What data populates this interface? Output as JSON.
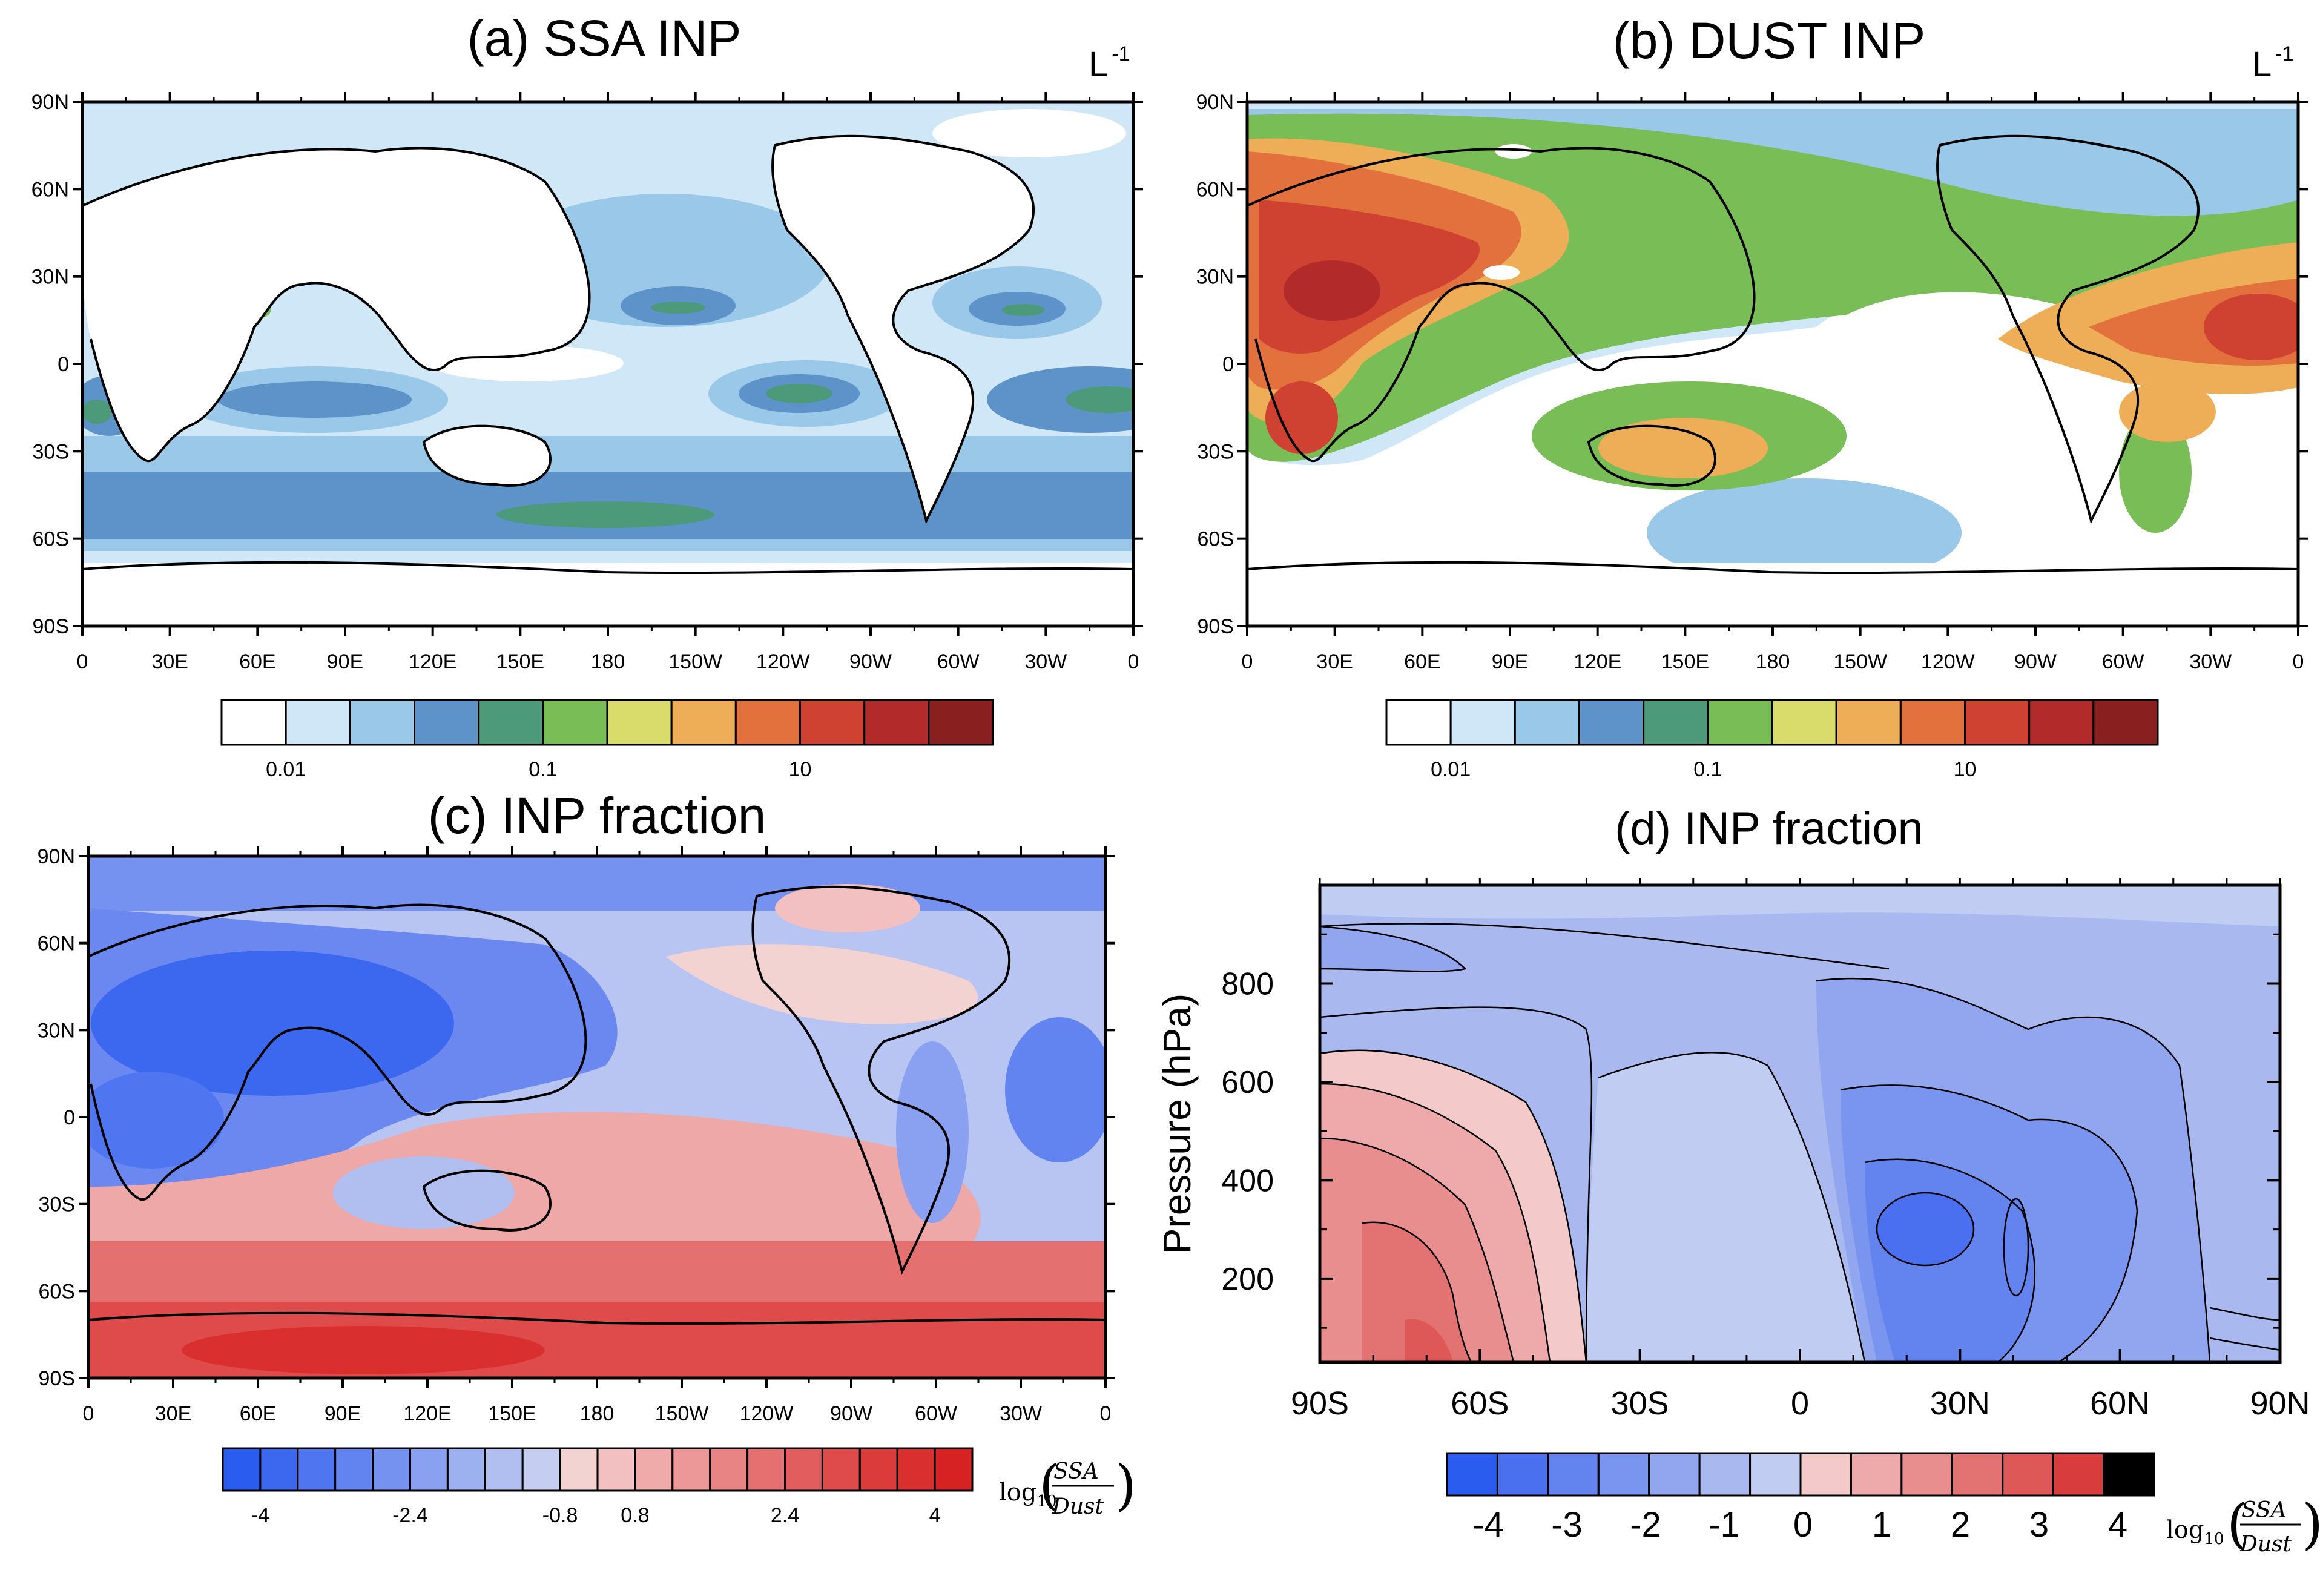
{
  "chart_data": [
    {
      "id": "a",
      "type": "heatmap",
      "title": "(a) SSA INP",
      "unit_label": "L",
      "unit_exp": "-1",
      "map_region": "global",
      "x_ticks": [
        "0",
        "30E",
        "60E",
        "90E",
        "120E",
        "150E",
        "180",
        "150W",
        "120W",
        "90W",
        "60W",
        "30W",
        "0"
      ],
      "y_ticks": [
        "90N",
        "60N",
        "30N",
        "0",
        "30S",
        "60S",
        "90S"
      ],
      "colorbar_colors": [
        "#ffffff",
        "#cfe7f7",
        "#9ac8e8",
        "#5e93ca",
        "#4c9a7a",
        "#78bd55",
        "#d9dc6a",
        "#eeae57",
        "#e2713d",
        "#cf4131",
        "#b32a2a",
        "#8a1f1f"
      ],
      "colorbar_labels": [
        "0.01",
        "0.1",
        "10"
      ],
      "colorbar_label_positions": [
        1,
        5,
        9
      ]
    },
    {
      "id": "b",
      "type": "heatmap",
      "title": "(b) DUST INP",
      "unit_label": "L",
      "unit_exp": "-1",
      "map_region": "global",
      "x_ticks": [
        "0",
        "30E",
        "60E",
        "90E",
        "120E",
        "150E",
        "180",
        "150W",
        "120W",
        "90W",
        "60W",
        "30W",
        "0"
      ],
      "y_ticks": [
        "90N",
        "60N",
        "30N",
        "0",
        "30S",
        "60S",
        "90S"
      ],
      "colorbar_colors": [
        "#ffffff",
        "#cfe7f7",
        "#9ac8e8",
        "#5e93ca",
        "#4c9a7a",
        "#78bd55",
        "#d9dc6a",
        "#eeae57",
        "#e2713d",
        "#cf4131",
        "#b32a2a",
        "#8a1f1f"
      ],
      "colorbar_labels": [
        "0.01",
        "0.1",
        "10"
      ],
      "colorbar_label_positions": [
        1,
        5,
        9
      ]
    },
    {
      "id": "c",
      "type": "heatmap",
      "title": "(c) INP fraction",
      "map_region": "global",
      "x_ticks": [
        "0",
        "30E",
        "60E",
        "90E",
        "120E",
        "150E",
        "180",
        "150W",
        "120W",
        "90W",
        "60W",
        "30W",
        "0"
      ],
      "y_ticks": [
        "90N",
        "60N",
        "30N",
        "0",
        "30S",
        "60S",
        "90S"
      ],
      "colorbar_colors": [
        "#2b5cf0",
        "#3c68f0",
        "#4f76f0",
        "#6284f0",
        "#7592f0",
        "#89a1f0",
        "#9db0f0",
        "#b1bff0",
        "#c5cef0",
        "#f3d2d2",
        "#f2c0c0",
        "#efaaaa",
        "#ec9898",
        "#e98484",
        "#e57070",
        "#e25d5d",
        "#df4a4a",
        "#dc3b3b",
        "#d92f2f",
        "#d62222"
      ],
      "colorbar_labels": [
        "-4",
        "-2.4",
        "-0.8",
        "0.8",
        "2.4",
        "4"
      ],
      "colorbar_label_positions": [
        1,
        5,
        9,
        11,
        15,
        19
      ],
      "colorbar_title_prefix": "log",
      "colorbar_title_sub": "10",
      "colorbar_title_num": "SSA",
      "colorbar_title_den": "Dust"
    },
    {
      "id": "d",
      "type": "heatmap",
      "title": "(d) INP fraction",
      "ylabel": "Pressure (hPa)",
      "x_ticks": [
        "90S",
        "60S",
        "30S",
        "0",
        "30N",
        "60N",
        "90N"
      ],
      "y_ticks": [
        "200",
        "400",
        "600",
        "800"
      ],
      "y_values": [
        200,
        400,
        600,
        800
      ],
      "ylim": [
        1000,
        30
      ],
      "xlim": [
        -90,
        90
      ],
      "colorbar_colors": [
        "#2b5cf0",
        "#4a70ef",
        "#6383ef",
        "#7a95ef",
        "#92a6ef",
        "#a9b9f0",
        "#c0ccf2",
        "#f3c9c9",
        "#eeaaaa",
        "#e88e8e",
        "#e37373",
        "#de5858",
        "#d93c3c",
        "#000000"
      ],
      "colorbar_labels": [
        "-4",
        "-3",
        "-2",
        "-1",
        "0",
        "1",
        "2",
        "3",
        "4"
      ],
      "colorbar_label_positions": [
        1,
        2,
        3,
        4,
        5,
        6,
        7,
        8,
        9
      ],
      "colorbar_title_prefix": "log",
      "colorbar_title_sub": "10",
      "colorbar_title_num": "SSA",
      "colorbar_title_den": "Dust"
    }
  ]
}
